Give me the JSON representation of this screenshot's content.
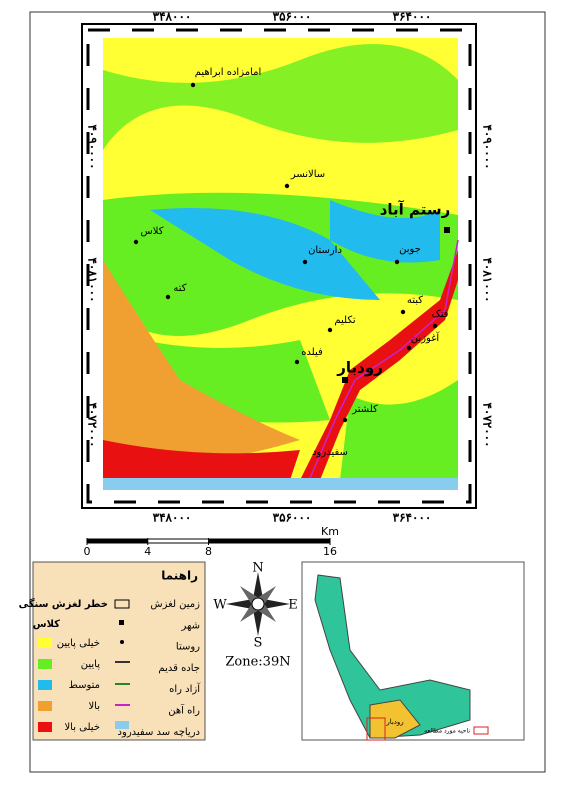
{
  "map": {
    "x_ticks": [
      "۳۴۸۰۰۰",
      "۳۵۶۰۰۰",
      "۳۶۴۰۰۰"
    ],
    "y_ticks": [
      "۴۰۹۰۰۰۰",
      "۴۰۸۱۰۰۰",
      "۴۰۷۲۰۰۰"
    ],
    "places": [
      {
        "label": "امامزاده ابراهیم"
      },
      {
        "label": "سالانسر"
      },
      {
        "label": "رستم آباد"
      },
      {
        "label": "کلاس"
      },
      {
        "label": "دارستان"
      },
      {
        "label": "جوبن"
      },
      {
        "label": "کبته"
      },
      {
        "label": "کته"
      },
      {
        "label": "تکلیم"
      },
      {
        "label": "فتک"
      },
      {
        "label": "آغوزبن"
      },
      {
        "label": "رودبار"
      },
      {
        "label": "فیلده"
      },
      {
        "label": "کلشتر"
      },
      {
        "label": "سفیدرود"
      }
    ],
    "scale": {
      "ticks": [
        0,
        4,
        8,
        16
      ],
      "unit": "Km"
    }
  },
  "legend": {
    "title": "راهنما",
    "subtitle": "خطر لغزش سنگی",
    "class_title": "کلاس",
    "classes": [
      {
        "label": "خیلی پایین",
        "color": "#ffff33"
      },
      {
        "label": "پایین",
        "color": "#66ee22"
      },
      {
        "label": "متوسط",
        "color": "#22bbee"
      },
      {
        "label": "بالا",
        "color": "#f0a030"
      },
      {
        "label": "خیلی بالا",
        "color": "#e81010"
      }
    ],
    "symbols": [
      "زمین لغزش",
      "شهر",
      "روستا",
      "جاده قدیم",
      "آزاد راه",
      "راه آهن",
      "دریاچه سد سفیدرود"
    ]
  },
  "compass": {
    "n": "N",
    "s": "S",
    "e": "E",
    "w": "W",
    "zone": "Zone:39N"
  },
  "inset": {
    "label": "رودبار",
    "note": "ناحیه مورد مطالعه"
  }
}
